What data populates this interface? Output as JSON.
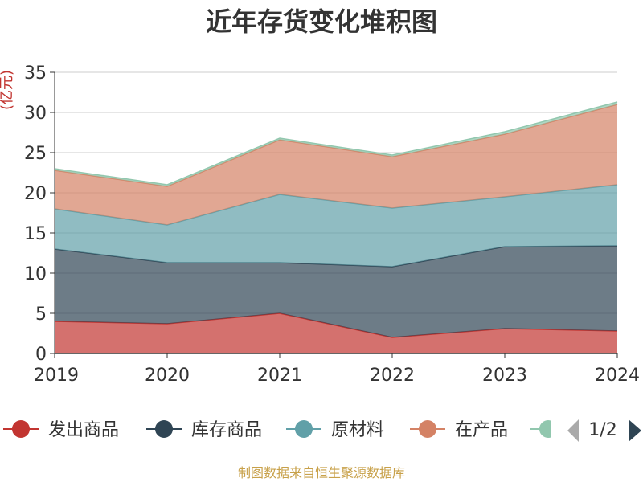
{
  "chart_data": {
    "type": "area",
    "stacked": true,
    "title": "近年存货变化堆积图",
    "ylabel": "(亿元)",
    "x": [
      "2019",
      "2020",
      "2021",
      "2022",
      "2023",
      "2024"
    ],
    "ylim": [
      0,
      35
    ],
    "yticks": [
      "0",
      "5",
      "10",
      "15",
      "20",
      "25",
      "30",
      "35"
    ],
    "grid": true,
    "legend_position": "bottom",
    "series": [
      {
        "name": "发出商品",
        "color": "#c23531",
        "values": [
          4.0,
          3.7,
          5.0,
          2.0,
          3.1,
          2.8
        ]
      },
      {
        "name": "库存商品",
        "color": "#2f4554",
        "values": [
          9.0,
          7.6,
          6.3,
          8.8,
          10.2,
          10.6
        ]
      },
      {
        "name": "原材料",
        "color": "#61a0a8",
        "values": [
          5.0,
          4.7,
          8.5,
          7.3,
          6.2,
          7.6
        ]
      },
      {
        "name": "在产品",
        "color": "#d48265",
        "values": [
          4.8,
          4.8,
          6.8,
          6.4,
          7.8,
          10.0
        ]
      },
      {
        "name": "",
        "color": "#91c7ae",
        "values": [
          0.2,
          0.2,
          0.2,
          0.2,
          0.3,
          0.3
        ]
      }
    ],
    "pager": "1/2",
    "source": "制图数据来自恒生聚源数据库"
  }
}
